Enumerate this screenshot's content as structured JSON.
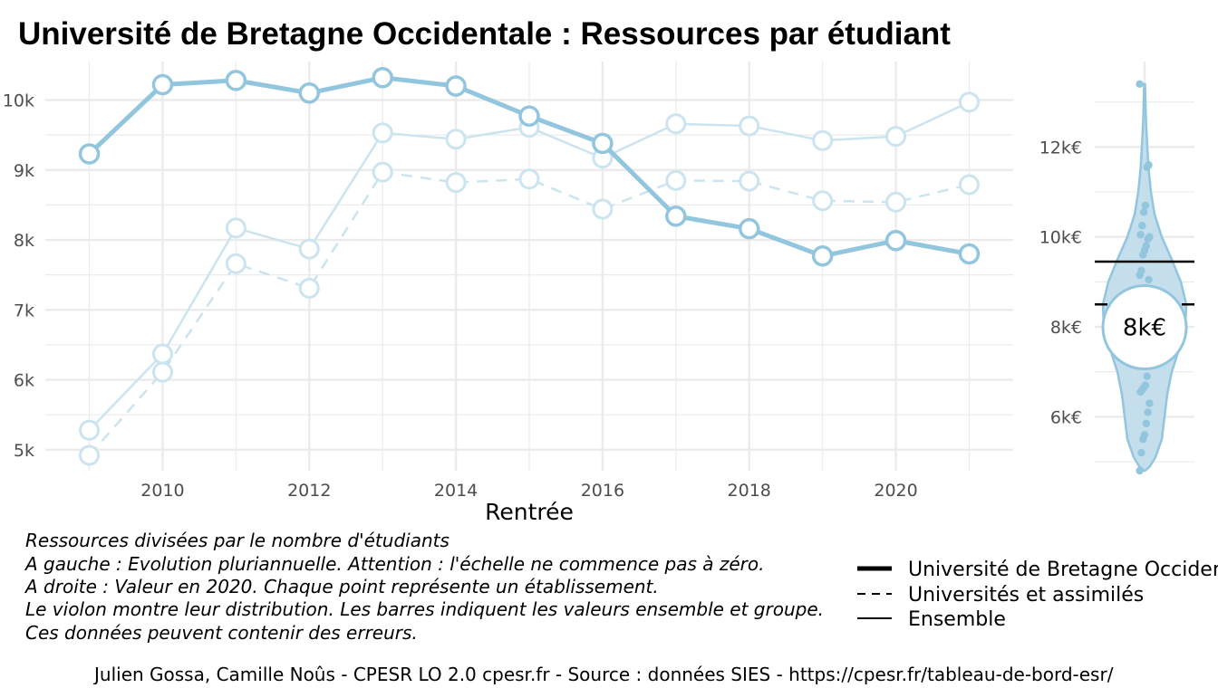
{
  "title": "Université de Bretagne Occidentale  :  Ressources par étudiant",
  "chart_data": [
    {
      "type": "line",
      "xlabel": "Rentrée",
      "ylabel": "",
      "x": [
        2009,
        2010,
        2011,
        2012,
        2013,
        2014,
        2015,
        2016,
        2017,
        2018,
        2019,
        2020,
        2021
      ],
      "x_ticks": [
        2010,
        2012,
        2014,
        2016,
        2018,
        2020
      ],
      "x_tick_labels": [
        "2010",
        "2012",
        "2014",
        "2016",
        "2018",
        "2020"
      ],
      "xlim": [
        2008.4,
        2021.6
      ],
      "ylim": [
        4700,
        10550
      ],
      "y_ticks": [
        5000,
        6000,
        7000,
        8000,
        9000,
        10000
      ],
      "y_tick_labels": [
        "5k",
        "6k",
        "7k",
        "8k",
        "9k",
        "10k"
      ],
      "grid": true,
      "series": [
        {
          "name": "Université de Bretagne Occidentale",
          "style": "solid-thick",
          "values": [
            9230,
            10220,
            10280,
            10100,
            10320,
            10200,
            9770,
            9380,
            8340,
            8160,
            7770,
            7990,
            7800
          ]
        },
        {
          "name": "Universités et assimilés",
          "style": "dashed",
          "values": [
            4920,
            6110,
            7660,
            7310,
            8970,
            8820,
            8870,
            8440,
            8850,
            8840,
            8560,
            8540,
            8790
          ]
        },
        {
          "name": "Ensemble",
          "style": "solid-thin",
          "values": [
            5280,
            6370,
            8170,
            7870,
            9530,
            9440,
            9610,
            9170,
            9660,
            9630,
            9420,
            9480,
            9970
          ]
        }
      ]
    },
    {
      "type": "violin",
      "ylim": [
        4800,
        13900
      ],
      "y_ticks": [
        6000,
        8000,
        10000,
        12000
      ],
      "y_tick_labels": [
        "6k€",
        "8k€",
        "10k€",
        "12k€"
      ],
      "grid": true,
      "points": [
        13400,
        11600,
        11550,
        10700,
        10550,
        10250,
        10050,
        10000,
        9950,
        9800,
        9700,
        9600,
        9250,
        9150,
        9050,
        6900,
        6700,
        6650,
        6600,
        6550,
        6300,
        6100,
        5850,
        5600,
        5500,
        5200,
        4800
      ],
      "reference_lines": {
        "Ensemble": 9450,
        "Universités et assimilés": 8500
      },
      "highlight": {
        "value": 7990,
        "label": "8k€"
      }
    }
  ],
  "caption": [
    "Ressources divisées par le nombre d'étudiants",
    "A gauche : Evolution pluriannuelle. Attention : l'échelle ne commence pas à zéro.",
    "A droite : Valeur en 2020. Chaque point représente un établissement.",
    "Le violon montre leur distribution. Les barres indiquent les valeurs ensemble et groupe.",
    "Ces données peuvent contenir des erreurs."
  ],
  "legend": [
    {
      "label": "Université de Bretagne Occidentale",
      "style": "solid-thick"
    },
    {
      "label": "Universités et assimilés",
      "style": "dashed"
    },
    {
      "label": "Ensemble",
      "style": "solid-thin"
    }
  ],
  "source": "Julien Gossa, Camille Noûs - CPESR LO 2.0 cpesr.fr - Source : données SIES - https://cpesr.fr/tableau-de-bord-esr/",
  "colors": {
    "line": "#92c5de",
    "line_light": "#cbe4ef",
    "violin_fill": "#c4deeb",
    "grid": "#ebebeb",
    "text": "#000000",
    "tick": "#4d4d4d"
  }
}
